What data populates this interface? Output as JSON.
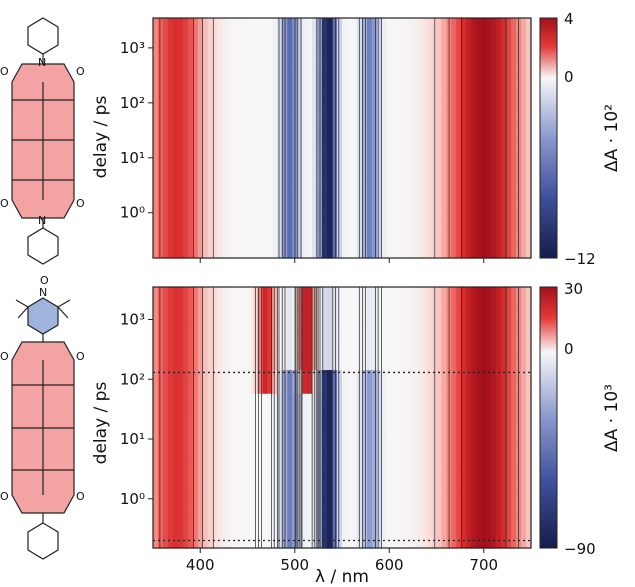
{
  "chart_data": [
    {
      "type": "heatmap",
      "panel": "top",
      "molecule": "perylene diimide with two cyclohexyl imide substituents",
      "xlabel": "λ / nm",
      "ylabel": "delay / ps",
      "colorbar_label": "ΔA · 10²",
      "colorbar_ticks": [
        "4",
        "0",
        "−12"
      ],
      "colorbar_values": [
        4,
        0,
        -12
      ],
      "xlim": [
        350,
        750
      ],
      "x_ticks": [
        "400",
        "500",
        "600",
        "700"
      ],
      "y_scale": "log",
      "ylim": [
        0.15,
        3500
      ],
      "y_ticks": [
        "10⁰",
        "10¹",
        "10²",
        "10³"
      ],
      "bands": [
        {
          "name": "bleach",
          "center_nm": 535,
          "value": -12
        },
        {
          "name": "bleach",
          "center_nm": 495,
          "value": -7
        },
        {
          "name": "bleach",
          "center_nm": 580,
          "value": -6
        },
        {
          "name": "excited-state absorption",
          "center_nm": 700,
          "value": 4
        },
        {
          "name": "excited-state absorption",
          "center_nm": 375,
          "value": 3
        }
      ],
      "colormap": {
        "negative": "#1d2a63",
        "zero": "#f7f7f7",
        "positive": "#a3101b"
      },
      "contours": true
    },
    {
      "type": "heatmap",
      "panel": "bottom",
      "molecule": "perylene diimide with TEMPO nitroxide radical substituent",
      "xlabel": "λ / nm",
      "ylabel": "delay / ps",
      "colorbar_label": "ΔA · 10³",
      "colorbar_ticks": [
        "30",
        "0",
        "−90"
      ],
      "colorbar_values": [
        30,
        0,
        -90
      ],
      "xlim": [
        350,
        750
      ],
      "x_ticks": [
        "400",
        "500",
        "600",
        "700"
      ],
      "y_scale": "log",
      "ylim": [
        0.15,
        3500
      ],
      "y_ticks": [
        "10⁰",
        "10¹",
        "10²",
        "10³"
      ],
      "reference_lines_ps": [
        0.2,
        130
      ],
      "bands": [
        {
          "name": "bleach",
          "center_nm": 535,
          "value": -90
        },
        {
          "name": "bleach",
          "center_nm": 495,
          "value": -45
        },
        {
          "name": "bleach",
          "center_nm": 580,
          "value": -35
        },
        {
          "name": "late absorption",
          "center_nm": 470,
          "value": 25
        },
        {
          "name": "late absorption",
          "center_nm": 513,
          "value": 28
        },
        {
          "name": "excited-state absorption",
          "center_nm": 700,
          "value": 30
        },
        {
          "name": "excited-state absorption",
          "center_nm": 375,
          "value": 22
        }
      ],
      "colormap": {
        "negative": "#1d2a63",
        "zero": "#f7f7f7",
        "positive": "#a3101b"
      },
      "contours": true
    }
  ]
}
